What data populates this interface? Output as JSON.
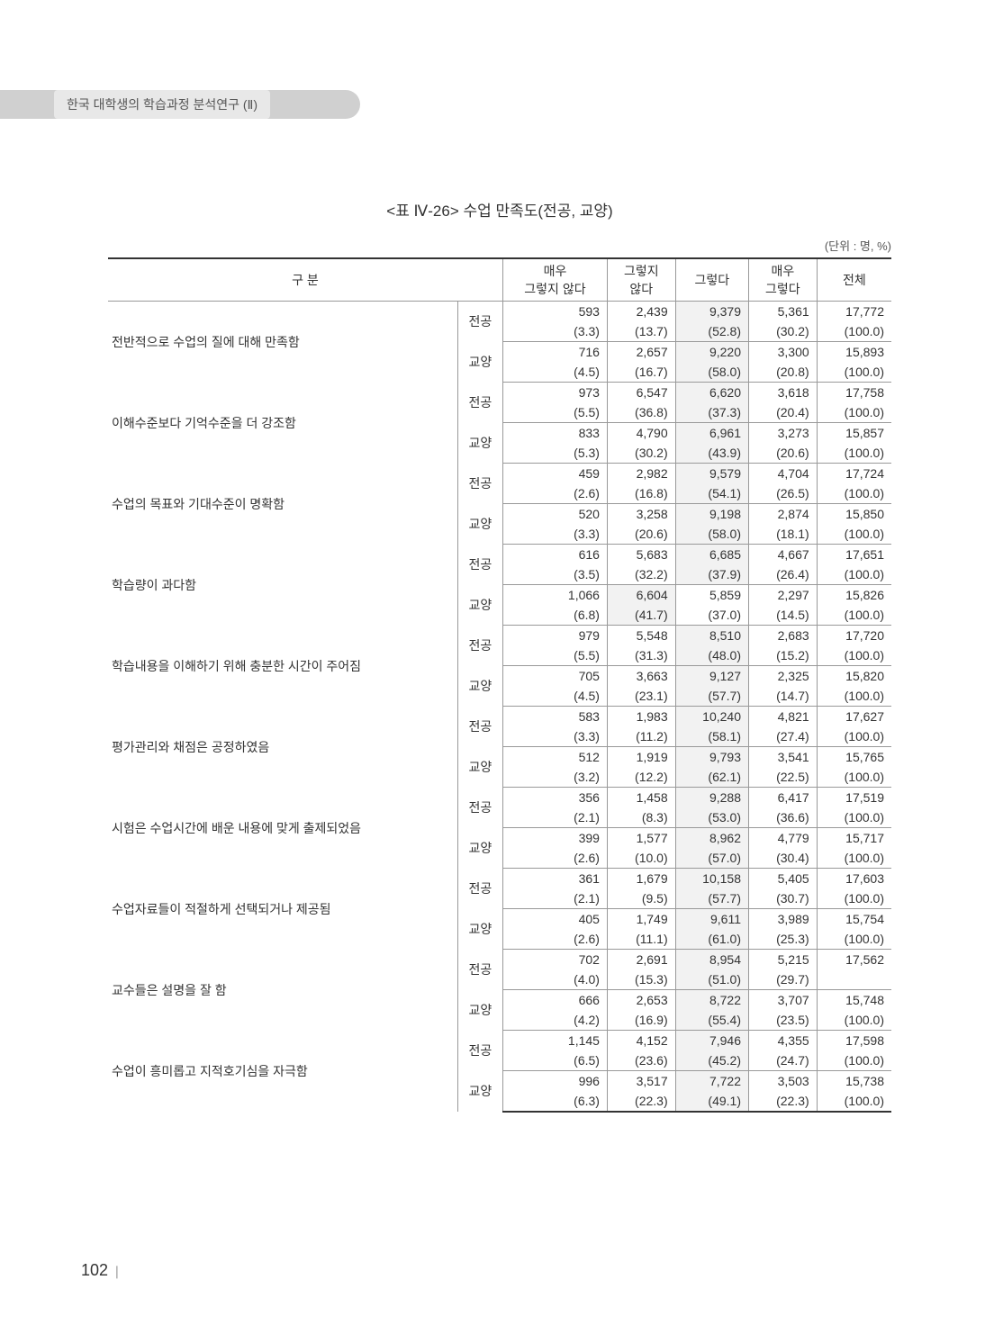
{
  "header_tab": "한국 대학생의 학습과정 분석연구 (Ⅱ)",
  "table_title": "<표 Ⅳ-26> 수업 만족도(전공, 교양)",
  "unit_label": "(단위 : 명, %)",
  "columns": {
    "category": "구 분",
    "c1_top": "매우",
    "c1_bot": "그렇지 않다",
    "c2_top": "그렇지",
    "c2_bot": "않다",
    "c3": "그렇다",
    "c4_top": "매우",
    "c4_bot": "그렇다",
    "c5": "전체"
  },
  "sub_major": "전공",
  "sub_liberal": "교양",
  "rows": [
    {
      "label": "전반적으로 수업의 질에 대해 만족함",
      "major": {
        "v": [
          "593",
          "2,439",
          "9,379",
          "5,361",
          "17,772"
        ],
        "p": [
          "(3.3)",
          "(13.7)",
          "(52.8)",
          "(30.2)",
          "(100.0)"
        ]
      },
      "liberal": {
        "v": [
          "716",
          "2,657",
          "9,220",
          "3,300",
          "15,893"
        ],
        "p": [
          "(4.5)",
          "(16.7)",
          "(58.0)",
          "(20.8)",
          "(100.0)"
        ]
      }
    },
    {
      "label": "이해수준보다 기억수준을 더 강조함",
      "major": {
        "v": [
          "973",
          "6,547",
          "6,620",
          "3,618",
          "17,758"
        ],
        "p": [
          "(5.5)",
          "(36.8)",
          "(37.3)",
          "(20.4)",
          "(100.0)"
        ]
      },
      "liberal": {
        "v": [
          "833",
          "4,790",
          "6,961",
          "3,273",
          "15,857"
        ],
        "p": [
          "(5.3)",
          "(30.2)",
          "(43.9)",
          "(20.6)",
          "(100.0)"
        ]
      }
    },
    {
      "label": "수업의 목표와 기대수준이 명확함",
      "major": {
        "v": [
          "459",
          "2,982",
          "9,579",
          "4,704",
          "17,724"
        ],
        "p": [
          "(2.6)",
          "(16.8)",
          "(54.1)",
          "(26.5)",
          "(100.0)"
        ]
      },
      "liberal": {
        "v": [
          "520",
          "3,258",
          "9,198",
          "2,874",
          "15,850"
        ],
        "p": [
          "(3.3)",
          "(20.6)",
          "(58.0)",
          "(18.1)",
          "(100.0)"
        ]
      }
    },
    {
      "label": "학습량이 과다함",
      "major": {
        "v": [
          "616",
          "5,683",
          "6,685",
          "4,667",
          "17,651"
        ],
        "p": [
          "(3.5)",
          "(32.2)",
          "(37.9)",
          "(26.4)",
          "(100.0)"
        ]
      },
      "liberal": {
        "v": [
          "1,066",
          "6,604",
          "5,859",
          "2,297",
          "15,826"
        ],
        "p": [
          "(6.8)",
          "(41.7)",
          "(37.0)",
          "(14.5)",
          "(100.0)"
        ]
      }
    },
    {
      "label": "학습내용을 이해하기 위해 충분한 시간이 주어짐",
      "major": {
        "v": [
          "979",
          "5,548",
          "8,510",
          "2,683",
          "17,720"
        ],
        "p": [
          "(5.5)",
          "(31.3)",
          "(48.0)",
          "(15.2)",
          "(100.0)"
        ]
      },
      "liberal": {
        "v": [
          "705",
          "3,663",
          "9,127",
          "2,325",
          "15,820"
        ],
        "p": [
          "(4.5)",
          "(23.1)",
          "(57.7)",
          "(14.7)",
          "(100.0)"
        ]
      }
    },
    {
      "label": "평가관리와 채점은 공정하였음",
      "major": {
        "v": [
          "583",
          "1,983",
          "10,240",
          "4,821",
          "17,627"
        ],
        "p": [
          "(3.3)",
          "(11.2)",
          "(58.1)",
          "(27.4)",
          "(100.0)"
        ]
      },
      "liberal": {
        "v": [
          "512",
          "1,919",
          "9,793",
          "3,541",
          "15,765"
        ],
        "p": [
          "(3.2)",
          "(12.2)",
          "(62.1)",
          "(22.5)",
          "(100.0)"
        ]
      }
    },
    {
      "label": "시험은 수업시간에 배운 내용에 맞게 출제되었음",
      "major": {
        "v": [
          "356",
          "1,458",
          "9,288",
          "6,417",
          "17,519"
        ],
        "p": [
          "(2.1)",
          "(8.3)",
          "(53.0)",
          "(36.6)",
          "(100.0)"
        ]
      },
      "liberal": {
        "v": [
          "399",
          "1,577",
          "8,962",
          "4,779",
          "15,717"
        ],
        "p": [
          "(2.6)",
          "(10.0)",
          "(57.0)",
          "(30.4)",
          "(100.0)"
        ]
      }
    },
    {
      "label": "수업자료들이 적절하게 선택되거나 제공됨",
      "major": {
        "v": [
          "361",
          "1,679",
          "10,158",
          "5,405",
          "17,603"
        ],
        "p": [
          "(2.1)",
          "(9.5)",
          "(57.7)",
          "(30.7)",
          "(100.0)"
        ]
      },
      "liberal": {
        "v": [
          "405",
          "1,749",
          "9,611",
          "3,989",
          "15,754"
        ],
        "p": [
          "(2.6)",
          "(11.1)",
          "(61.0)",
          "(25.3)",
          "(100.0)"
        ]
      }
    },
    {
      "label": "교수들은 설명을 잘 함",
      "major": {
        "v": [
          "702",
          "2,691",
          "8,954",
          "5,215",
          "17,562"
        ],
        "p": [
          "(4.0)",
          "(15.3)",
          "(51.0)",
          "(29.7)",
          ""
        ]
      },
      "liberal": {
        "v": [
          "666",
          "2,653",
          "8,722",
          "3,707",
          "15,748"
        ],
        "p": [
          "(4.2)",
          "(16.9)",
          "(55.4)",
          "(23.5)",
          "(100.0)"
        ]
      }
    },
    {
      "label": "수업이 흥미롭고 지적호기심을 자극함",
      "major": {
        "v": [
          "1,145",
          "4,152",
          "7,946",
          "4,355",
          "17,598"
        ],
        "p": [
          "(6.5)",
          "(23.6)",
          "(45.2)",
          "(24.7)",
          "(100.0)"
        ]
      },
      "liberal": {
        "v": [
          "996",
          "3,517",
          "7,722",
          "3,503",
          "15,738"
        ],
        "p": [
          "(6.3)",
          "(22.3)",
          "(49.1)",
          "(22.3)",
          "(100.0)"
        ]
      }
    }
  ],
  "highlight_rows": {
    "0": {
      "major": 2,
      "liberal": 2
    },
    "1": {
      "major": 2,
      "liberal": 2
    },
    "2": {
      "major": 2,
      "liberal": 2
    },
    "3": {
      "major": 2,
      "liberal": 1
    },
    "4": {
      "major": 2,
      "liberal": 2
    },
    "5": {
      "major": 2,
      "liberal": 2
    },
    "6": {
      "major": 2,
      "liberal": 2
    },
    "7": {
      "major": 2,
      "liberal": 2
    },
    "8": {
      "major": 2,
      "liberal": 2
    },
    "9": {
      "major": 2,
      "liberal": 2
    }
  },
  "page_number": "102"
}
